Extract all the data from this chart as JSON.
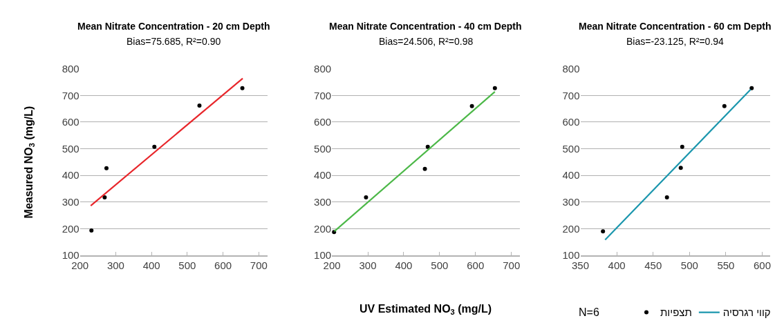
{
  "chart_data": [
    {
      "type": "scatter",
      "title": "Mean Nitrate Concentration - 20 cm Depth",
      "subtitle": "Bias=75.685, R²=0.90",
      "ylabel": "Measured NO$_{3}$ (mg/L)",
      "series": [
        {
          "type": "scatter",
          "color": "#000000",
          "marker": "circle",
          "x": [
            232,
            269,
            274,
            408,
            534,
            654
          ],
          "values": [
            193,
            317,
            427,
            507,
            662,
            727
          ]
        },
        {
          "type": "line",
          "color": "#e8262b",
          "x": [
            230,
            655
          ],
          "values": [
            286,
            764
          ]
        }
      ],
      "xlim": [
        200,
        725
      ],
      "xticks": [
        200,
        300,
        400,
        500,
        600,
        700
      ],
      "ylim": [
        100,
        800
      ],
      "yticks": [
        100,
        200,
        300,
        400,
        500,
        600,
        700,
        800
      ],
      "grid": "y",
      "legend": false
    },
    {
      "type": "scatter",
      "title": "Mean Nitrate Concentration - 40 cm Depth",
      "subtitle": "Bias=24.506, R²=0.98",
      "xlabel": "UV Estimated NO$_{3}$ (mg/L)",
      "series": [
        {
          "type": "scatter",
          "color": "#000000",
          "marker": "circle",
          "x": [
            206,
            295,
            459,
            467,
            590,
            654
          ],
          "values": [
            187,
            317,
            424,
            507,
            660,
            727
          ]
        },
        {
          "type": "line",
          "color": "#4cb848",
          "x": [
            207,
            654
          ],
          "values": [
            190,
            714
          ]
        }
      ],
      "xlim": [
        200,
        723
      ],
      "xticks": [
        200,
        300,
        400,
        500,
        600,
        700
      ],
      "ylim": [
        100,
        800
      ],
      "yticks": [
        100,
        200,
        300,
        400,
        500,
        600,
        700,
        800
      ],
      "grid": "y",
      "legend": false
    },
    {
      "type": "scatter",
      "title": "Mean Nitrate Concentration - 60 cm Depth",
      "subtitle": "Bias=-23.125, R²=0.94",
      "annotations": [
        "N=6"
      ],
      "series": [
        {
          "type": "scatter",
          "name": "תצפיות",
          "color": "#000000",
          "marker": "circle",
          "x": [
            381,
            469,
            488,
            490,
            548,
            585.5
          ],
          "values": [
            190,
            317,
            428,
            507,
            660,
            727
          ]
        },
        {
          "type": "line",
          "name": "קווי רגרסיה",
          "color": "#1a96ad",
          "x": [
            384,
            584
          ],
          "values": [
            158,
            722
          ]
        }
      ],
      "xlim": [
        350,
        611
      ],
      "xticks": [
        350,
        400,
        450,
        500,
        550,
        600
      ],
      "ylim": [
        100,
        800
      ],
      "yticks": [
        100,
        200,
        300,
        400,
        500,
        600,
        700,
        800
      ],
      "grid": "y",
      "legend": "bottom right"
    }
  ]
}
